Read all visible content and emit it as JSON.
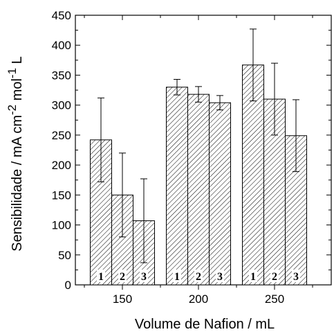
{
  "chart_data": {
    "type": "bar",
    "xlabel": "Volume de Nafion / mL",
    "ylabel_parts": {
      "main": "Sensibilidade / mA cm",
      "exp1": "-2",
      "mid": " mol",
      "exp2": "-1",
      "tail": " L"
    },
    "ylim": [
      0,
      450
    ],
    "y_major_ticks": [
      0,
      50,
      100,
      150,
      200,
      250,
      300,
      350,
      400,
      450
    ],
    "categories": [
      "150",
      "200",
      "250"
    ],
    "bar_labels": [
      "1",
      "2",
      "3"
    ],
    "series": [
      {
        "values": [
          242,
          330,
          367
        ],
        "errors": [
          70,
          13,
          60
        ]
      },
      {
        "values": [
          150,
          318,
          310
        ],
        "errors": [
          70,
          13,
          60
        ]
      },
      {
        "values": [
          107,
          304,
          249
        ],
        "errors": [
          70,
          12,
          60
        ]
      }
    ],
    "pattern": "diagonal-hatch",
    "bar_fill": "#ffffff",
    "line_color": "#000000"
  }
}
